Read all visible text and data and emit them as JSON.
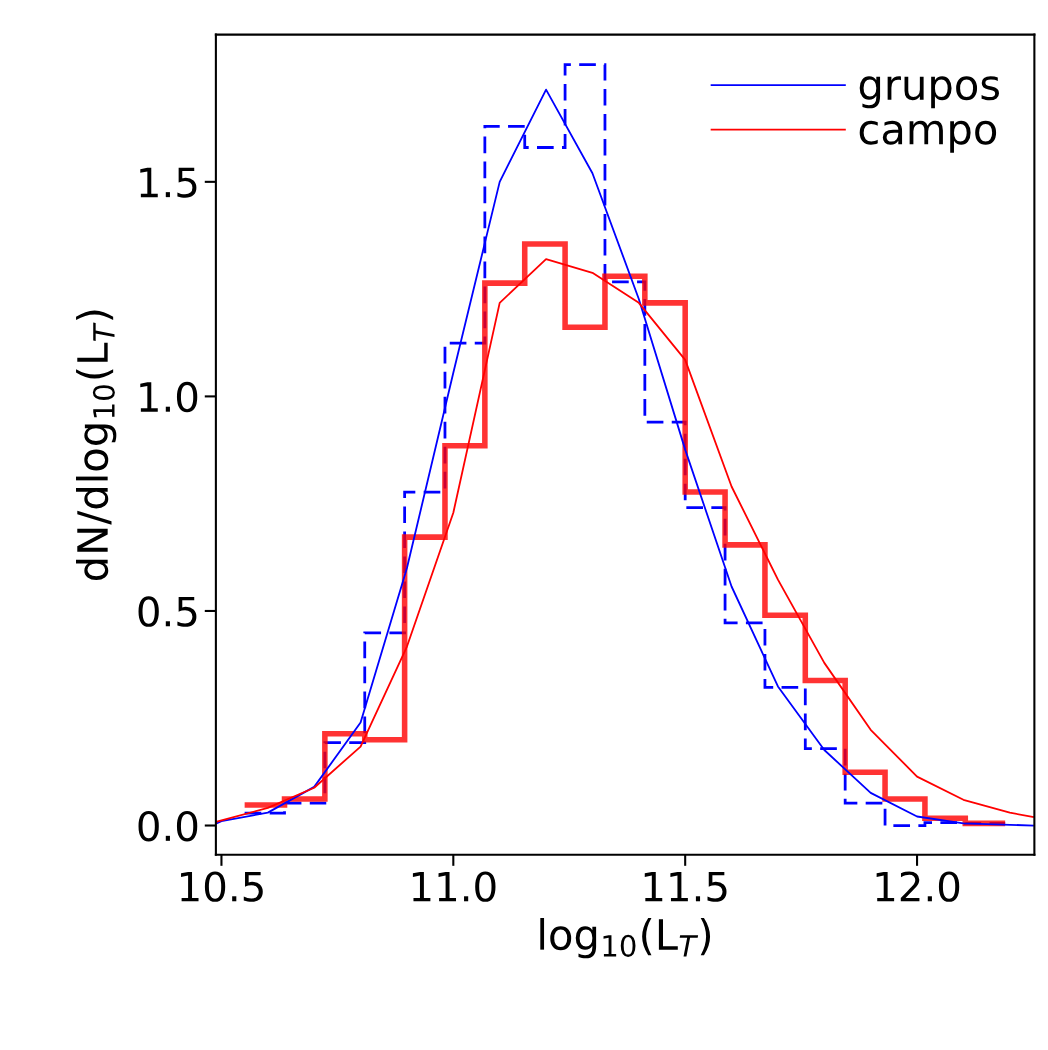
{
  "chart_data": {
    "type": "histogram",
    "xlabel": "log$_{10}$(L$_{T}$)",
    "ylabel": "dN/dlog$_{10}$(L$_{T}$)",
    "bins": [
      10.55,
      10.636,
      10.723,
      10.809,
      10.895,
      10.982,
      11.068,
      11.154,
      11.241,
      11.327,
      11.413,
      11.5,
      11.586,
      11.672,
      11.759,
      11.845,
      11.931,
      12.017,
      12.104,
      12.19
    ],
    "series": [
      {
        "color": "#0000ff",
        "line_style": "dashed",
        "values": [
          0.029,
          0.052,
          0.193,
          0.449,
          0.777,
          1.124,
          1.629,
          1.58,
          1.773,
          1.267,
          0.94,
          0.741,
          0.472,
          0.322,
          0.179,
          0.052,
          0.0,
          0.007,
          0.005
        ]
      },
      {
        "color": "#ff0000",
        "line_style": "solid",
        "values": [
          0.048,
          0.062,
          0.214,
          0.2,
          0.672,
          0.885,
          1.264,
          1.355,
          1.161,
          1.28,
          1.218,
          0.777,
          0.654,
          0.49,
          0.338,
          0.124,
          0.062,
          0.017,
          0.005
        ]
      },
      {
        "type": "line",
        "name": "grupos",
        "color": "#0000ff",
        "line_style": "solid",
        "x": [
          10.49,
          10.5,
          10.6,
          10.7,
          10.8,
          10.9,
          11.0,
          11.1,
          11.2,
          11.3,
          11.4,
          11.5,
          11.6,
          11.7,
          11.8,
          11.9,
          12.0,
          12.1,
          12.25
        ],
        "values": [
          0.005,
          0.01,
          0.03,
          0.09,
          0.24,
          0.6,
          1.055,
          1.5,
          1.715,
          1.52,
          1.227,
          0.876,
          0.557,
          0.324,
          0.176,
          0.076,
          0.021,
          0.005,
          0.0
        ]
      },
      {
        "type": "line",
        "name": "campo",
        "color": "#ff0000",
        "line_style": "solid",
        "x": [
          10.49,
          10.6,
          10.7,
          10.8,
          10.9,
          11.0,
          11.1,
          11.2,
          11.3,
          11.4,
          11.5,
          11.6,
          11.7,
          11.8,
          11.9,
          12.0,
          12.1,
          12.2,
          12.25
        ],
        "values": [
          0.009,
          0.041,
          0.088,
          0.184,
          0.417,
          0.729,
          1.218,
          1.32,
          1.288,
          1.218,
          1.085,
          0.79,
          0.573,
          0.379,
          0.223,
          0.114,
          0.06,
          0.03,
          0.02
        ]
      }
    ],
    "xlim": [
      10.488,
      12.253
    ],
    "ylim": [
      -0.068,
      1.843
    ],
    "xticks": [
      10.5,
      {
        "value": 11,
        "label": "11.0"
      },
      11.5,
      {
        "value": 12,
        "label": "12.0"
      }
    ],
    "yticks": [
      {
        "value": 0,
        "label": "0.0"
      },
      0.5,
      {
        "value": 1,
        "label": "1.0"
      },
      1.5
    ],
    "grid": false,
    "legend": "top right"
  }
}
